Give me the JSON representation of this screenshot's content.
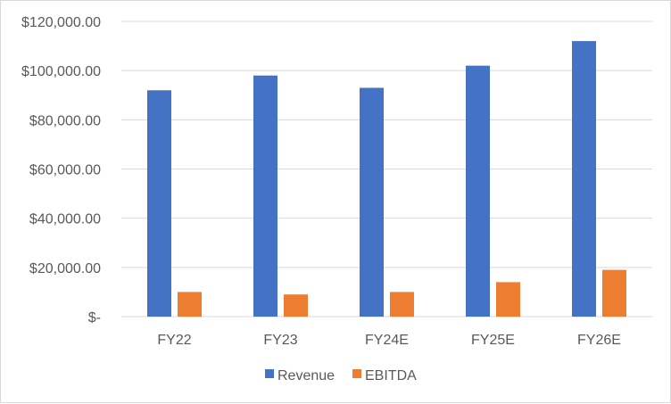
{
  "chart_data": {
    "type": "bar",
    "title": "",
    "xlabel": "",
    "ylabel": "",
    "categories": [
      "FY22",
      "FY23",
      "FY24E",
      "FY25E",
      "FY26E"
    ],
    "series": [
      {
        "name": "Revenue",
        "color": "#4472c4",
        "values": [
          92000,
          98000,
          93000,
          102000,
          112000
        ]
      },
      {
        "name": "EBITDA",
        "color": "#ed7d31",
        "values": [
          10000,
          9000,
          10000,
          14000,
          19000
        ]
      }
    ],
    "ylim": [
      0,
      120000
    ],
    "yticks": [
      0,
      20000,
      40000,
      60000,
      80000,
      100000,
      120000
    ],
    "ytick_labels": [
      "$-",
      "$20,000.00",
      "$40,000.00",
      "$60,000.00",
      "$80,000.00",
      "$100,000.00",
      "$120,000.00"
    ],
    "grid": true,
    "legend_position": "bottom"
  }
}
